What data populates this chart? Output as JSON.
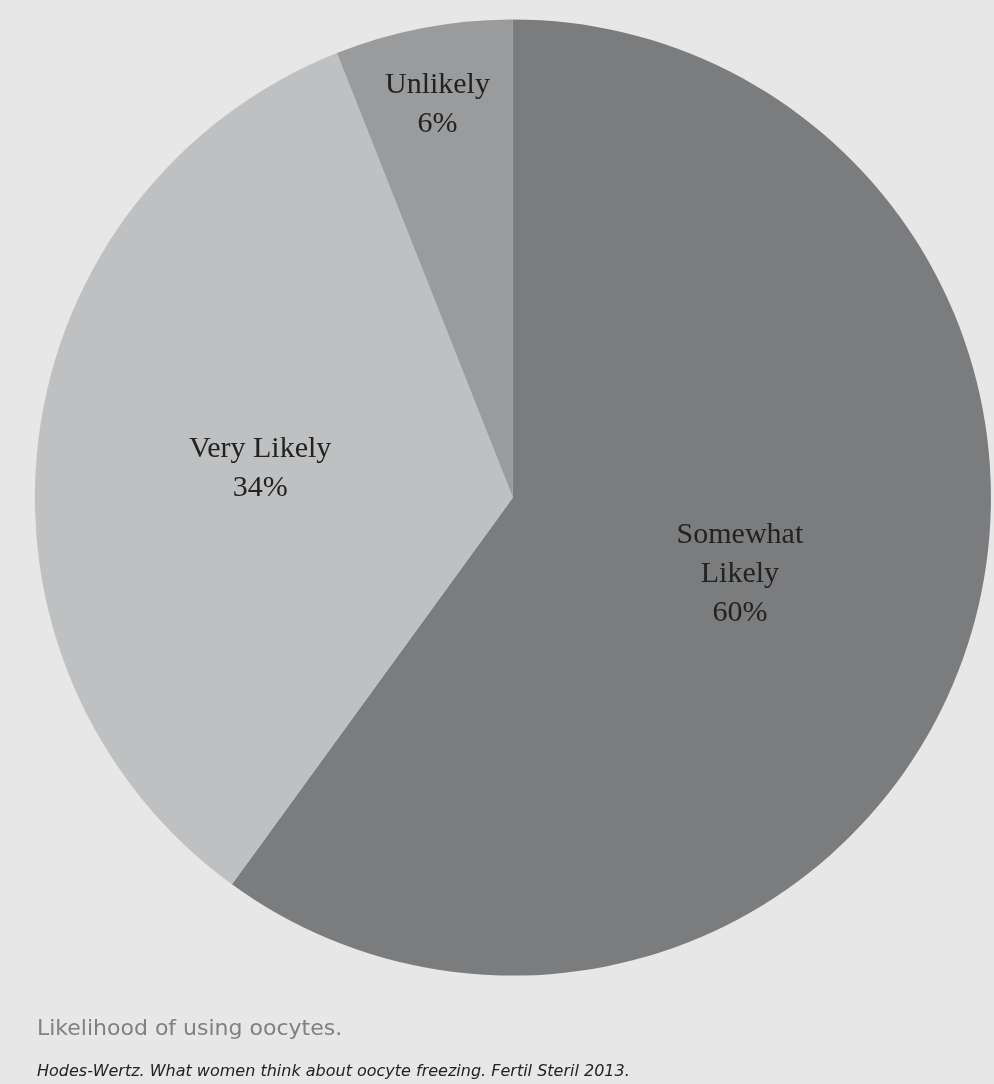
{
  "chart_data": {
    "type": "pie",
    "categories": [
      "Somewhat\nLikely",
      "Very Likely",
      "Unlikely"
    ],
    "values": [
      60,
      34,
      6
    ],
    "colors": [
      "#7b7c7e",
      "#bfc0c2",
      "#9a9b9d"
    ],
    "value_labels": [
      "60%",
      "34%",
      "6%"
    ],
    "legend": false,
    "annotations": [
      "Likelihood of using oocytes.",
      "Hodes-Wertz. What women think about oocyte freezing. Fertil Steril 2013."
    ]
  }
}
